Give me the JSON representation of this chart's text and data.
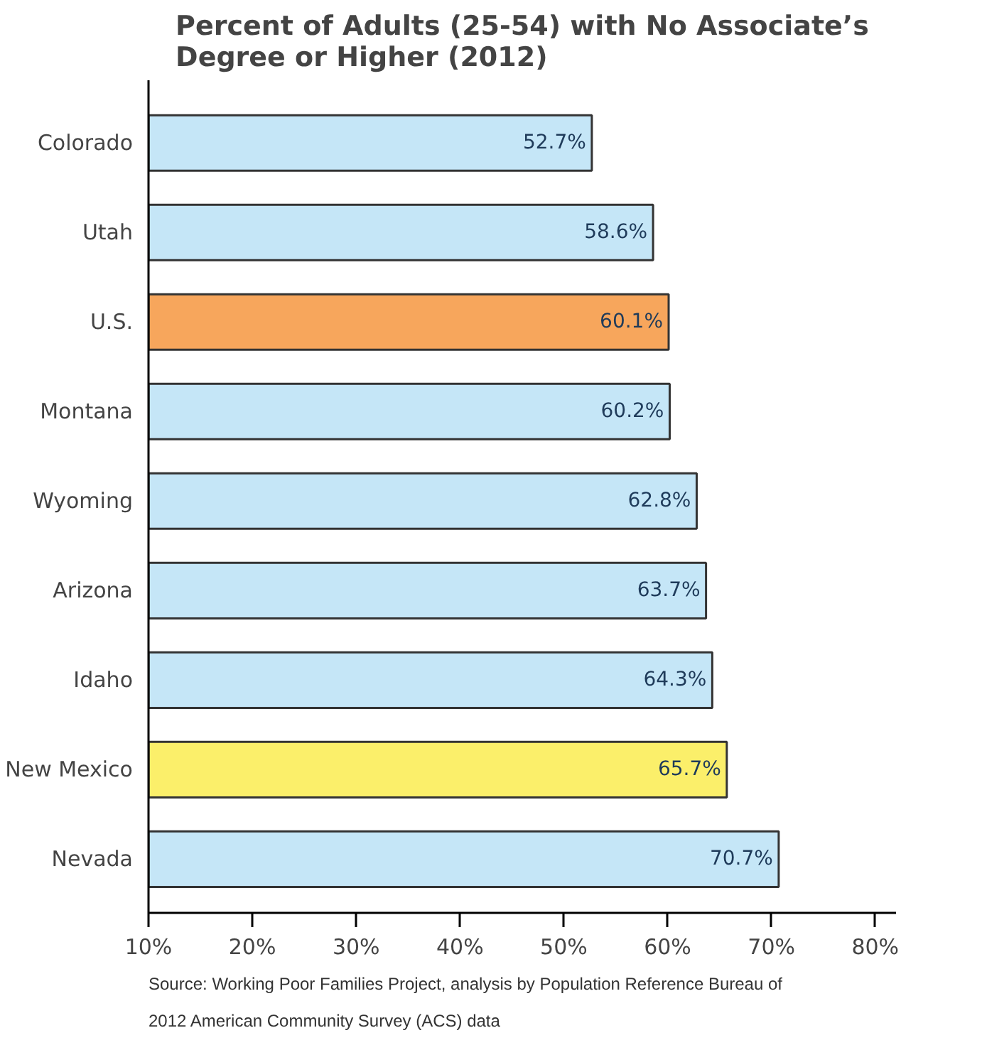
{
  "chart_data": {
    "type": "bar",
    "orientation": "horizontal",
    "title": "Percent of Adults (25-54) with No Associate’s Degree or Higher (2012)",
    "categories": [
      "Colorado",
      "Utah",
      "U.S.",
      "Montana",
      "Wyoming",
      "Arizona",
      "Idaho",
      "New Mexico",
      "Nevada"
    ],
    "values": [
      52.7,
      58.6,
      60.1,
      60.2,
      62.8,
      63.7,
      64.3,
      65.7,
      70.7
    ],
    "value_labels": [
      "52.7%",
      "58.6%",
      "60.1%",
      "60.2%",
      "62.8%",
      "63.7%",
      "64.3%",
      "65.7%",
      "70.7%"
    ],
    "colors": [
      "#c5e6f7",
      "#c5e6f7",
      "#f7a65c",
      "#c5e6f7",
      "#c5e6f7",
      "#c5e6f7",
      "#c5e6f7",
      "#fbef6a",
      "#c5e6f7"
    ],
    "xlim": [
      10,
      82
    ],
    "xticks": [
      {
        "value": 10,
        "label": "10%"
      },
      {
        "value": 20,
        "label": "20%"
      },
      {
        "value": 30,
        "label": "30%"
      },
      {
        "value": 40,
        "label": "40%"
      },
      {
        "value": 50,
        "label": "50%"
      },
      {
        "value": 60,
        "label": "60%"
      },
      {
        "value": 70,
        "label": "70%"
      },
      {
        "value": 80,
        "label": "80%"
      }
    ],
    "grid": false,
    "annotations": [
      "Source: Working Poor Families Project, analysis by Population Reference Bureau of 2012 American Community Survey (ACS) data"
    ]
  }
}
